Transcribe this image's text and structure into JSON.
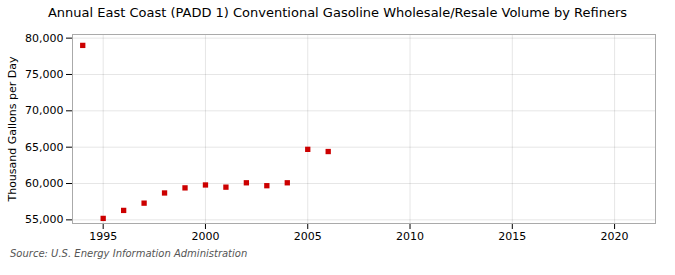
{
  "chart_data": {
    "type": "scatter",
    "title": "Annual East Coast (PADD 1) Conventional Gasoline Wholesale/Resale Volume by Refiners",
    "ylabel": "Thousand Gallons per Day",
    "source": "Source: U.S. Energy Information Administration",
    "x": [
      1994,
      1995,
      1996,
      1997,
      1998,
      1999,
      2000,
      2001,
      2002,
      2003,
      2004,
      2005,
      2006
    ],
    "values": [
      79000,
      55200,
      56300,
      57300,
      58700,
      59400,
      59800,
      59500,
      60100,
      59700,
      60100,
      64700,
      64400
    ],
    "color": "#cc0000",
    "marker": "square",
    "xlim": [
      1993.5,
      2022
    ],
    "ylim": [
      54500,
      80500
    ],
    "xticks": [
      1995,
      2000,
      2005,
      2010,
      2015,
      2020
    ],
    "yticks": [
      {
        "value": 55000,
        "label": "55,000"
      },
      {
        "value": 60000,
        "label": "60,000"
      },
      {
        "value": 65000,
        "label": "65,000"
      },
      {
        "value": 70000,
        "label": "70,000"
      },
      {
        "value": 75000,
        "label": "75,000"
      },
      {
        "value": 80000,
        "label": "80,000"
      }
    ],
    "grid": true
  }
}
